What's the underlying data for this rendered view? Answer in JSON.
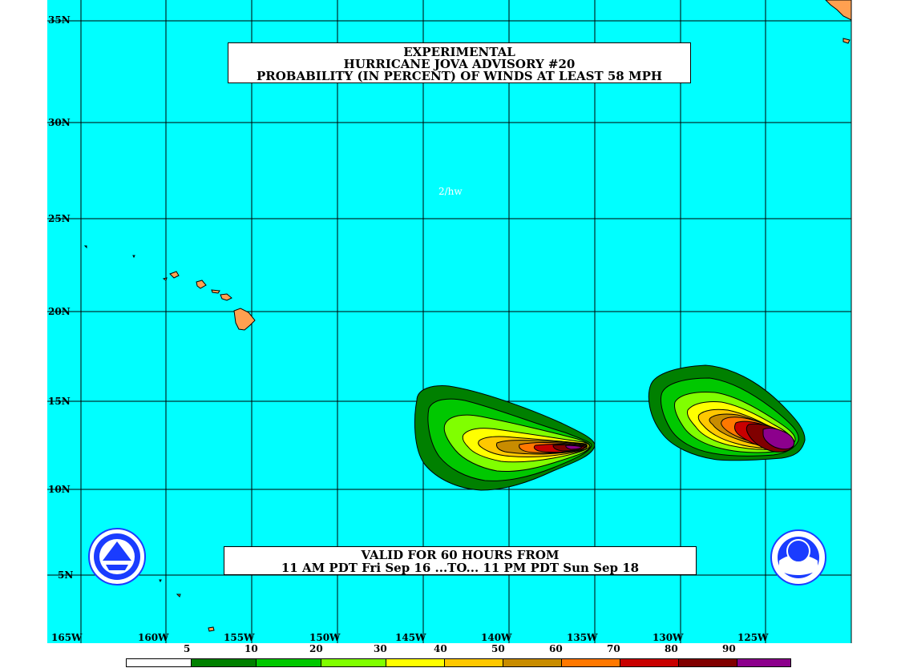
{
  "title": {
    "line1": "EXPERIMENTAL",
    "line2": "HURRICANE JOVA ADVISORY #20",
    "line3": "PROBABILITY (IN PERCENT) OF WINDS AT LEAST 58 MPH"
  },
  "valid": {
    "line1": "VALID FOR 60 HOURS FROM",
    "line2": "11 AM PDT Fri Sep 16 ...TO... 11 PM PDT Sun Sep 18"
  },
  "map_note": "2/hw",
  "lat_labels": [
    "35N",
    "30N",
    "25N",
    "20N",
    "15N",
    "10N",
    "5N"
  ],
  "lon_labels": [
    "165W",
    "160W",
    "155W",
    "150W",
    "145W",
    "140W",
    "135W",
    "130W",
    "125W"
  ],
  "legend": {
    "labels": [
      "5",
      "10",
      "20",
      "30",
      "40",
      "50",
      "60",
      "70",
      "80",
      "90"
    ],
    "colors": [
      "#ffffff",
      "#008000",
      "#00c800",
      "#80ff00",
      "#ffff00",
      "#ffc800",
      "#c88c00",
      "#ff7800",
      "#c80000",
      "#800000",
      "#8c008c"
    ]
  },
  "colors": {
    "ocean": "#00ffff",
    "land": "#ffa050",
    "grid": "#000000"
  },
  "logos": {
    "left": "National Weather Service",
    "right": "NOAA"
  }
}
